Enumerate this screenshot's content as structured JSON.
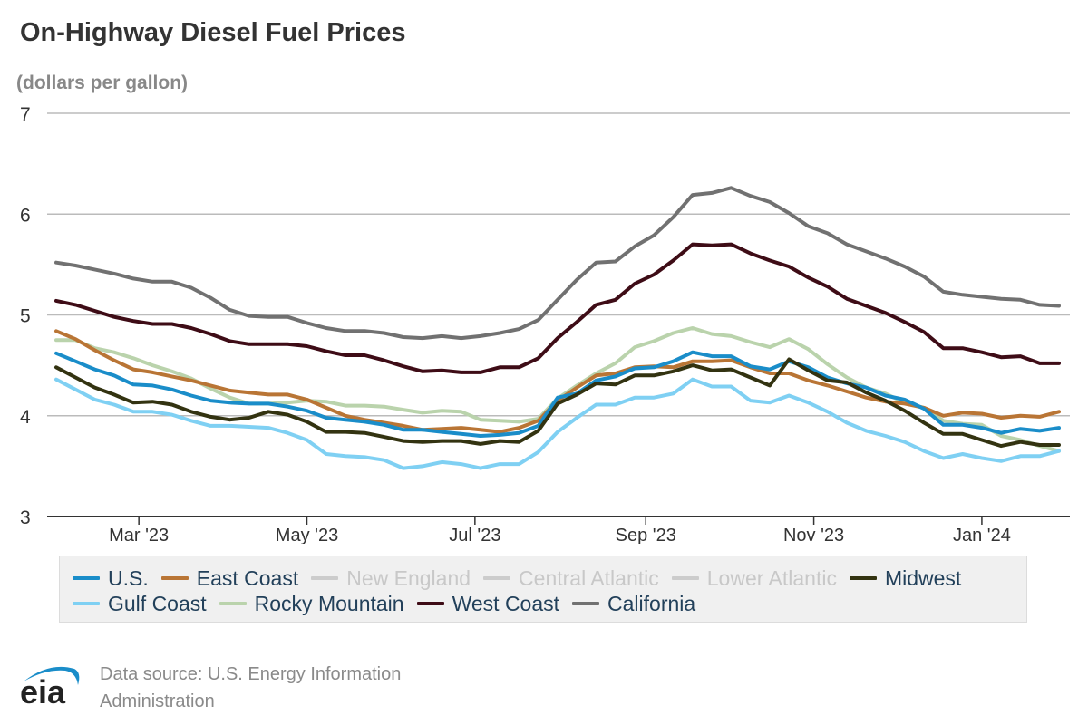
{
  "chart_data": {
    "type": "line",
    "title": "On-Highway Diesel Fuel Prices",
    "subtitle": "(dollars per gallon)",
    "ylim": [
      3,
      7
    ],
    "yticks": [
      3,
      4,
      5,
      6,
      7
    ],
    "xticks": [
      {
        "date": "2023-03-01",
        "label": "Mar '23"
      },
      {
        "date": "2023-05-01",
        "label": "May '23"
      },
      {
        "date": "2023-07-01",
        "label": "Jul '23"
      },
      {
        "date": "2023-09-01",
        "label": "Sep '23"
      },
      {
        "date": "2023-11-01",
        "label": "Nov '23"
      },
      {
        "date": "2024-01-01",
        "label": "Jan '24"
      }
    ],
    "grid": "horizontal",
    "legend_position": "bottom",
    "x": [
      "2023-01-30",
      "2023-02-06",
      "2023-02-13",
      "2023-02-20",
      "2023-02-27",
      "2023-03-06",
      "2023-03-13",
      "2023-03-20",
      "2023-03-27",
      "2023-04-03",
      "2023-04-10",
      "2023-04-17",
      "2023-04-24",
      "2023-05-01",
      "2023-05-08",
      "2023-05-15",
      "2023-05-22",
      "2023-05-29",
      "2023-06-05",
      "2023-06-12",
      "2023-06-19",
      "2023-06-26",
      "2023-07-03",
      "2023-07-10",
      "2023-07-17",
      "2023-07-24",
      "2023-07-31",
      "2023-08-07",
      "2023-08-14",
      "2023-08-21",
      "2023-08-28",
      "2023-09-04",
      "2023-09-11",
      "2023-09-18",
      "2023-09-25",
      "2023-10-02",
      "2023-10-09",
      "2023-10-16",
      "2023-10-23",
      "2023-10-30",
      "2023-11-06",
      "2023-11-13",
      "2023-11-20",
      "2023-11-27",
      "2023-12-04",
      "2023-12-11",
      "2023-12-18",
      "2023-12-25",
      "2024-01-01",
      "2024-01-08",
      "2024-01-15",
      "2024-01-22",
      "2024-01-29"
    ],
    "series": [
      {
        "name": "U.S.",
        "color": "#1a8dc9",
        "visible": true,
        "values": [
          4.62,
          4.54,
          4.46,
          4.4,
          4.31,
          4.3,
          4.26,
          4.2,
          4.15,
          4.13,
          4.12,
          4.12,
          4.09,
          4.05,
          3.98,
          3.96,
          3.94,
          3.91,
          3.86,
          3.86,
          3.84,
          3.82,
          3.8,
          3.81,
          3.83,
          3.9,
          4.18,
          4.22,
          4.35,
          4.39,
          4.47,
          4.48,
          4.54,
          4.63,
          4.59,
          4.59,
          4.49,
          4.46,
          4.54,
          4.48,
          4.38,
          4.32,
          4.28,
          4.2,
          4.16,
          4.07,
          3.91,
          3.91,
          3.88,
          3.83,
          3.87,
          3.85,
          3.88
        ]
      },
      {
        "name": "East Coast",
        "color": "#b97535",
        "visible": true,
        "values": [
          4.84,
          4.76,
          4.65,
          4.55,
          4.46,
          4.43,
          4.39,
          4.35,
          4.3,
          4.25,
          4.23,
          4.21,
          4.21,
          4.16,
          4.08,
          4.0,
          3.96,
          3.93,
          3.9,
          3.86,
          3.87,
          3.88,
          3.86,
          3.84,
          3.88,
          3.95,
          4.15,
          4.28,
          4.4,
          4.42,
          4.48,
          4.49,
          4.48,
          4.54,
          4.54,
          4.55,
          4.48,
          4.42,
          4.42,
          4.35,
          4.3,
          4.24,
          4.18,
          4.14,
          4.12,
          4.08,
          4.0,
          4.03,
          4.02,
          3.98,
          4.0,
          3.99,
          4.04
        ]
      },
      {
        "name": "New England",
        "color": "#cccccc",
        "visible": false
      },
      {
        "name": "Central Atlantic",
        "color": "#cccccc",
        "visible": false
      },
      {
        "name": "Lower Atlantic",
        "color": "#cccccc",
        "visible": false
      },
      {
        "name": "Midwest",
        "color": "#333311",
        "visible": true,
        "values": [
          4.48,
          4.38,
          4.28,
          4.21,
          4.13,
          4.14,
          4.11,
          4.04,
          3.99,
          3.96,
          3.98,
          4.04,
          4.01,
          3.94,
          3.84,
          3.84,
          3.83,
          3.79,
          3.75,
          3.74,
          3.75,
          3.75,
          3.72,
          3.75,
          3.74,
          3.85,
          4.12,
          4.21,
          4.32,
          4.31,
          4.4,
          4.4,
          4.44,
          4.5,
          4.45,
          4.46,
          4.38,
          4.3,
          4.56,
          4.45,
          4.35,
          4.33,
          4.23,
          4.15,
          4.05,
          3.93,
          3.82,
          3.82,
          3.76,
          3.7,
          3.74,
          3.71,
          3.71
        ]
      },
      {
        "name": "Gulf Coast",
        "color": "#7fd0f3",
        "visible": true,
        "values": [
          4.36,
          4.26,
          4.16,
          4.11,
          4.04,
          4.04,
          4.01,
          3.95,
          3.9,
          3.9,
          3.89,
          3.88,
          3.83,
          3.76,
          3.62,
          3.6,
          3.59,
          3.56,
          3.48,
          3.5,
          3.54,
          3.52,
          3.48,
          3.52,
          3.52,
          3.64,
          3.84,
          3.98,
          4.11,
          4.11,
          4.18,
          4.18,
          4.22,
          4.36,
          4.29,
          4.29,
          4.15,
          4.13,
          4.2,
          4.13,
          4.04,
          3.93,
          3.85,
          3.8,
          3.74,
          3.65,
          3.58,
          3.62,
          3.58,
          3.55,
          3.6,
          3.6,
          3.65
        ]
      },
      {
        "name": "Rocky Mountain",
        "color": "#bad3ac",
        "visible": true,
        "values": [
          4.75,
          4.75,
          4.67,
          4.63,
          4.57,
          4.5,
          4.44,
          4.37,
          4.27,
          4.18,
          4.12,
          4.12,
          4.13,
          4.15,
          4.14,
          4.1,
          4.1,
          4.09,
          4.06,
          4.03,
          4.05,
          4.04,
          3.96,
          3.95,
          3.94,
          3.97,
          4.17,
          4.3,
          4.42,
          4.52,
          4.68,
          4.74,
          4.82,
          4.87,
          4.81,
          4.79,
          4.73,
          4.68,
          4.76,
          4.66,
          4.51,
          4.38,
          4.28,
          4.22,
          4.13,
          4.08,
          3.95,
          3.92,
          3.91,
          3.8,
          3.76,
          3.7,
          3.65
        ]
      },
      {
        "name": "West Coast",
        "color": "#3e0c16",
        "visible": true,
        "values": [
          5.14,
          5.1,
          5.04,
          4.98,
          4.94,
          4.91,
          4.91,
          4.87,
          4.81,
          4.74,
          4.71,
          4.71,
          4.71,
          4.69,
          4.64,
          4.6,
          4.6,
          4.55,
          4.49,
          4.44,
          4.45,
          4.43,
          4.43,
          4.48,
          4.48,
          4.57,
          4.77,
          4.93,
          5.1,
          5.15,
          5.31,
          5.4,
          5.54,
          5.7,
          5.69,
          5.7,
          5.61,
          5.54,
          5.48,
          5.37,
          5.28,
          5.16,
          5.09,
          5.02,
          4.93,
          4.83,
          4.67,
          4.67,
          4.63,
          4.58,
          4.59,
          4.52,
          4.52
        ]
      },
      {
        "name": "California",
        "color": "#717171",
        "visible": true,
        "values": [
          5.52,
          5.49,
          5.45,
          5.41,
          5.36,
          5.33,
          5.33,
          5.27,
          5.17,
          5.05,
          4.99,
          4.98,
          4.98,
          4.92,
          4.87,
          4.84,
          4.84,
          4.82,
          4.78,
          4.77,
          4.79,
          4.77,
          4.79,
          4.82,
          4.86,
          4.95,
          5.15,
          5.35,
          5.52,
          5.53,
          5.68,
          5.79,
          5.97,
          6.19,
          6.21,
          6.26,
          6.18,
          6.12,
          6.01,
          5.88,
          5.81,
          5.7,
          5.63,
          5.56,
          5.48,
          5.38,
          5.23,
          5.2,
          5.18,
          5.16,
          5.15,
          5.1,
          5.09
        ]
      }
    ],
    "legend_rows": [
      [
        "U.S.",
        "East Coast",
        "New England",
        "Central Atlantic",
        "Lower Atlantic",
        "Midwest"
      ],
      [
        "Gulf Coast",
        "Rocky Mountain",
        "West Coast",
        "California"
      ]
    ]
  },
  "footer": {
    "logo": "eia",
    "source_line1": "Data source: U.S. Energy Information",
    "source_line2": "Administration"
  },
  "colors": {
    "logo_arc": "#1a8dc9",
    "logo_text": "#222222",
    "grid": "#bbbbbb"
  }
}
